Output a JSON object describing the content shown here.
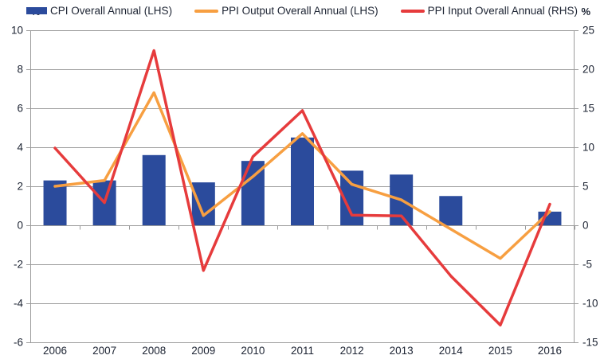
{
  "legend": {
    "left_unit": "%",
    "right_unit": "%",
    "items": [
      {
        "label": "CPI Overall Annual (LHS)",
        "swatch": "bar-swatch",
        "color": "#2b4b9c"
      },
      {
        "label": "PPI Output Overall Annual (LHS)",
        "swatch": "line-swatch",
        "color": "#f79f41"
      },
      {
        "label": "PPI Input Overall Annual (RHS)",
        "swatch": "line-swatch",
        "color": "#e63b3c"
      }
    ]
  },
  "chart_data": {
    "type": "bar",
    "subtype": "bar+line combo, dual axis",
    "title": "",
    "xlabel": "",
    "ylabel_left": "%",
    "ylabel_right": "%",
    "grid": true,
    "legend_position": "top",
    "categories": [
      "2006",
      "2007",
      "2008",
      "2009",
      "2010",
      "2011",
      "2012",
      "2013",
      "2014",
      "2015",
      "2016"
    ],
    "series": [
      {
        "name": "CPI Overall Annual (LHS)",
        "type": "bar",
        "axis": "left",
        "color": "#2b4b9c",
        "values": [
          2.3,
          2.3,
          3.6,
          2.2,
          3.3,
          4.5,
          2.8,
          2.6,
          1.5,
          0.0,
          0.7
        ]
      },
      {
        "name": "PPI Output Overall Annual (LHS)",
        "type": "line",
        "axis": "left",
        "color": "#f79f41",
        "values": [
          2.0,
          2.3,
          6.8,
          0.5,
          2.5,
          4.7,
          2.1,
          1.3,
          -0.2,
          -1.7,
          0.7
        ]
      },
      {
        "name": "PPI Input Overall Annual (RHS)",
        "type": "line",
        "axis": "right",
        "color": "#e63b3c",
        "values": [
          9.9,
          2.9,
          22.4,
          -5.8,
          8.8,
          14.7,
          1.3,
          1.2,
          -6.5,
          -12.8,
          2.7
        ]
      }
    ],
    "left_axis": {
      "min": -6,
      "max": 10,
      "step": 2,
      "ticks": [
        10,
        8,
        6,
        4,
        2,
        0,
        -2,
        -4,
        -6
      ]
    },
    "right_axis": {
      "min": -15,
      "max": 25,
      "step": 5,
      "ticks": [
        25,
        20,
        15,
        10,
        5,
        0,
        -5,
        -10,
        -15
      ]
    }
  }
}
